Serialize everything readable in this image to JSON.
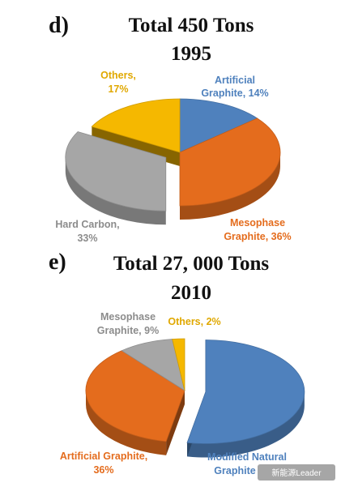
{
  "chart_data": [
    {
      "type": "pie",
      "panel": "d)",
      "title": "Total 450 Tons",
      "subtitle": "1995",
      "slices": [
        {
          "label": "Artificial",
          "label2": "Graphite, 14%",
          "value": 14,
          "color": "#4f81bd",
          "exploded": false
        },
        {
          "label": "Mesophase",
          "label2": "Graphite, 36%",
          "value": 36,
          "color": "#e46c1d",
          "exploded": false
        },
        {
          "label": "Hard Carbon,",
          "label2": "33%",
          "value": 33,
          "color": "#a6a6a6",
          "exploded": true
        },
        {
          "label": "Others,",
          "label2": "17%",
          "value": 17,
          "color": "#f5b800",
          "exploded": false
        }
      ]
    },
    {
      "type": "pie",
      "panel": "e)",
      "title": "Total 27, 000 Tons",
      "subtitle": "2010",
      "slices": [
        {
          "label": "Modified Natural",
          "label2": "Graphite",
          "value": 53,
          "color": "#4f81bd",
          "exploded": true
        },
        {
          "label": "Artificial Graphite,",
          "label2": "36%",
          "value": 36,
          "color": "#e46c1d",
          "exploded": false
        },
        {
          "label": "Mesophase",
          "label2": "Graphite, 9%",
          "value": 9,
          "color": "#a6a6a6",
          "exploded": false
        },
        {
          "label": "Others, 2%",
          "label2": "",
          "value": 2,
          "color": "#f5b800",
          "exploded": false
        }
      ]
    }
  ],
  "watermark": "新能源Leader"
}
